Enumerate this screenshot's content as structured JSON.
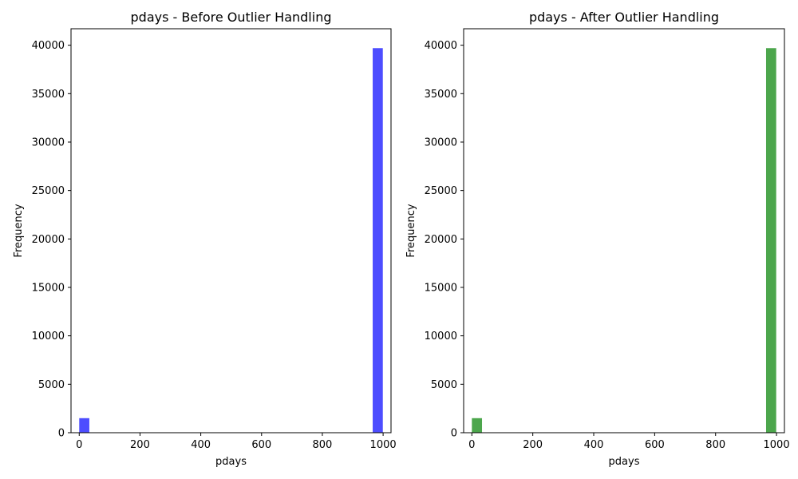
{
  "chart_data": [
    {
      "type": "bar",
      "title": "pdays - Before Outlier Handling",
      "xlabel": "pdays",
      "ylabel": "Frequency",
      "xlim": [
        -27,
        1026
      ],
      "ylim": [
        0,
        41700
      ],
      "xticks": [
        0,
        200,
        400,
        600,
        800,
        1000
      ],
      "yticks": [
        0,
        5000,
        10000,
        15000,
        20000,
        25000,
        30000,
        35000,
        40000
      ],
      "color": "#4d4dff",
      "bins": [
        {
          "x0": 0,
          "x1": 33.3,
          "value": 1500
        },
        {
          "x0": 965.7,
          "x1": 999,
          "value": 39700
        }
      ]
    },
    {
      "type": "bar",
      "title": "pdays - After Outlier Handling",
      "xlabel": "pdays",
      "ylabel": "Frequency",
      "xlim": [
        -27,
        1026
      ],
      "ylim": [
        0,
        41700
      ],
      "xticks": [
        0,
        200,
        400,
        600,
        800,
        1000
      ],
      "yticks": [
        0,
        5000,
        10000,
        15000,
        20000,
        25000,
        30000,
        35000,
        40000
      ],
      "color": "#4ca64c",
      "bins": [
        {
          "x0": 0,
          "x1": 33.3,
          "value": 1500
        },
        {
          "x0": 965.7,
          "x1": 999,
          "value": 39700
        }
      ]
    }
  ]
}
